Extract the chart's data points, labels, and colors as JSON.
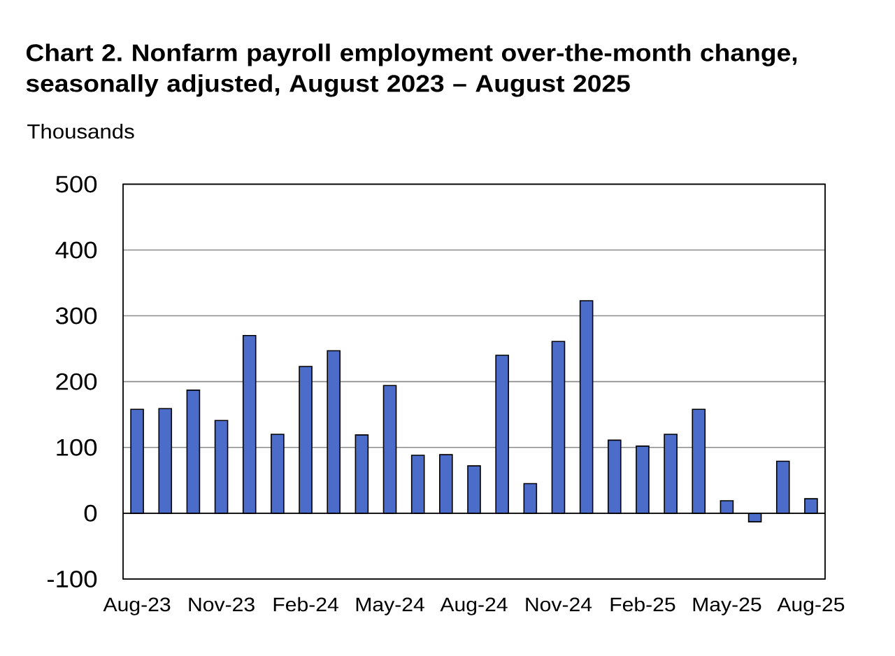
{
  "chart_data": {
    "type": "bar",
    "title": "Chart 2. Nonfarm payroll employment over-the-month change, seasonally adjusted, August 2023 – August 2025",
    "ylabel": "Thousands",
    "categories": [
      "Aug-23",
      null,
      null,
      "Nov-23",
      null,
      null,
      "Feb-24",
      null,
      null,
      "May-24",
      null,
      null,
      "Aug-24",
      null,
      null,
      "Nov-24",
      null,
      null,
      "Feb-25",
      null,
      null,
      "May-25",
      null,
      null,
      "Aug-25"
    ],
    "values": [
      158,
      159,
      187,
      141,
      270,
      120,
      223,
      247,
      119,
      194,
      88,
      89,
      72,
      240,
      45,
      261,
      323,
      111,
      102,
      120,
      158,
      19,
      -13,
      79,
      22
    ],
    "color": "#4b6cc9",
    "ylim": [
      -100,
      500
    ],
    "yticks": [
      -100,
      0,
      100,
      200,
      300,
      400,
      500
    ],
    "grid": "y"
  }
}
